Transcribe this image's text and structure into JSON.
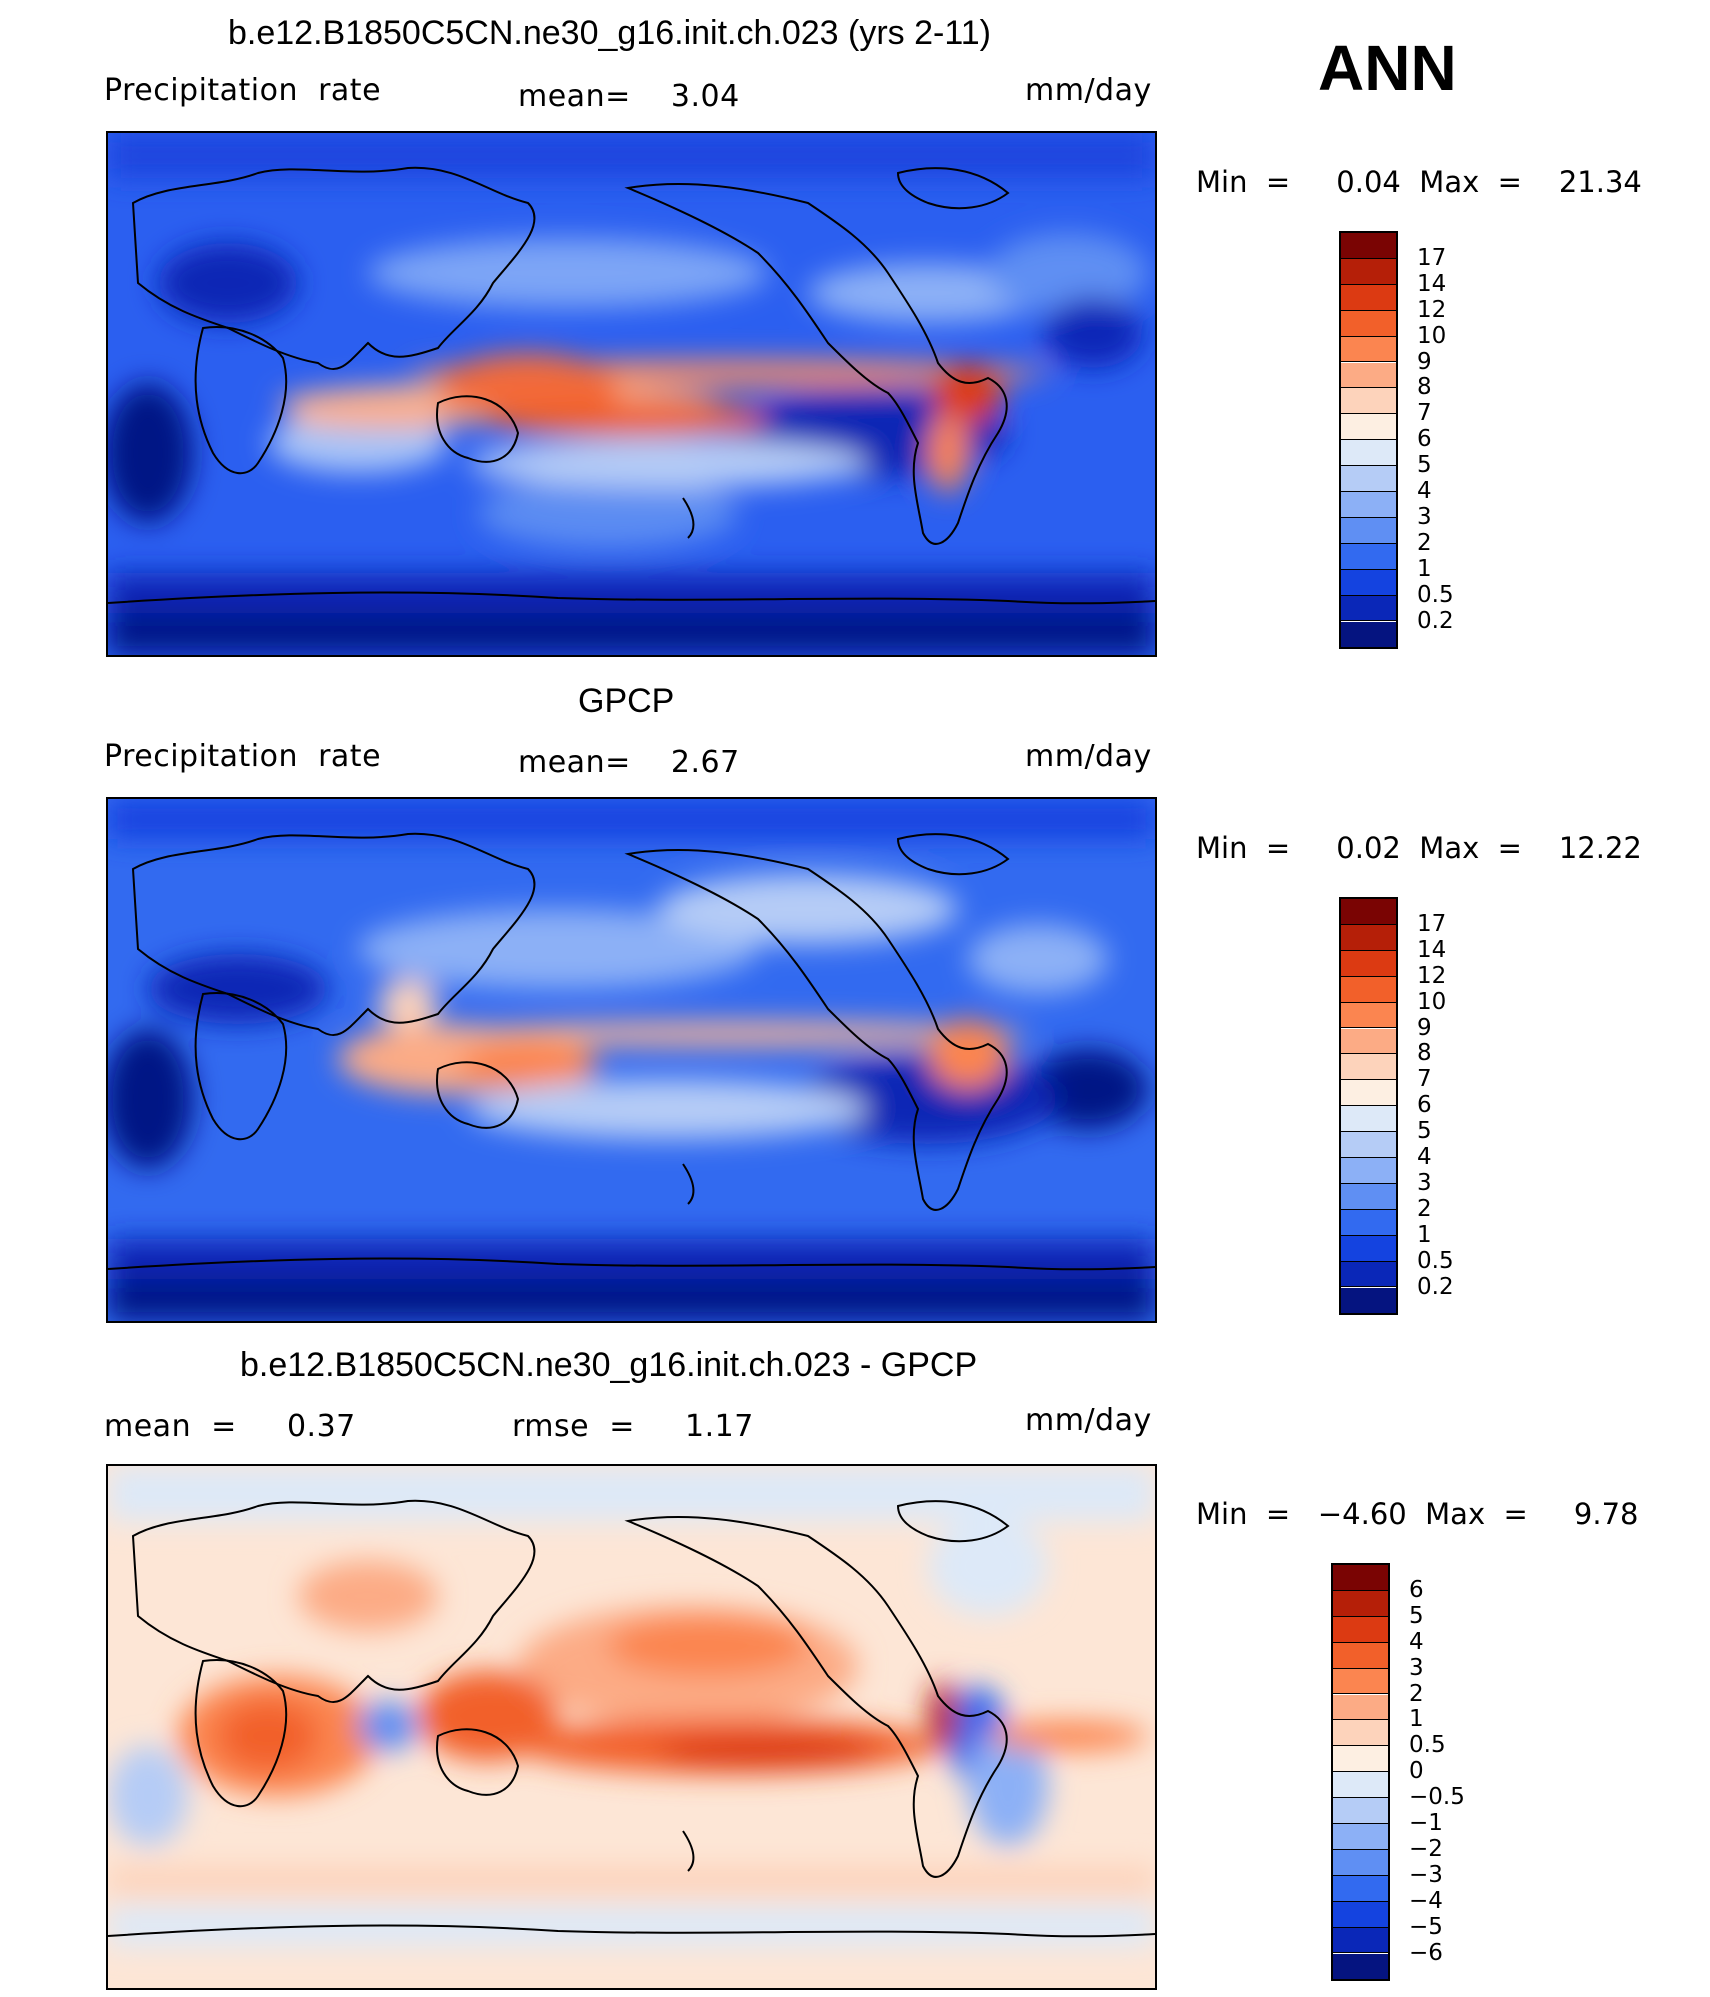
{
  "season": "ANN",
  "panels": [
    {
      "title": "b.e12.B1850C5CN.ne30_g16.init.ch.023 (yrs 2-11)",
      "left_label": "Precipitation  rate",
      "center_label": "mean=    3.04",
      "units": "mm/day",
      "minmax": "Min  =     0.04  Max  =    21.34",
      "field": "model"
    },
    {
      "title": "GPCP",
      "left_label": "Precipitation  rate",
      "center_label": "mean=    2.67",
      "units": "mm/day",
      "minmax": "Min  =     0.02  Max  =    12.22",
      "field": "obs"
    },
    {
      "title": "b.e12.B1850C5CN.ne30_g16.init.ch.023 - GPCP",
      "left_label": "mean  =     0.37",
      "center_label": "rmse  =     1.17",
      "units": "mm/day",
      "minmax": "Min  =   −4.60  Max  =     9.78",
      "field": "diff"
    }
  ],
  "colorbars": {
    "precip": {
      "labels": [
        "17",
        "14",
        "12",
        "10",
        "9",
        "8",
        "7",
        "6",
        "5",
        "4",
        "3",
        "2",
        "1",
        "0.5",
        "0.2"
      ],
      "colors": [
        "#7a0403",
        "#b51f08",
        "#dc3a12",
        "#f2602a",
        "#fb8550",
        "#fcab85",
        "#fdd3bb",
        "#fdefe2",
        "#dde9f8",
        "#b5ccf6",
        "#8cb0f6",
        "#5f8ff3",
        "#326af0",
        "#1443e0",
        "#0a27b8",
        "#051480"
      ]
    },
    "diff": {
      "labels": [
        "6",
        "5",
        "4",
        "3",
        "2",
        "1",
        "0.5",
        "0",
        "−0.5",
        "−1",
        "−2",
        "−3",
        "−4",
        "−5",
        "−6"
      ],
      "colors": [
        "#7a0403",
        "#b51f08",
        "#dc3a12",
        "#f2602a",
        "#fb8550",
        "#fcab85",
        "#fdd3bb",
        "#fdefe2",
        "#dde9f8",
        "#b5ccf6",
        "#8cb0f6",
        "#5f8ff3",
        "#326af0",
        "#1443e0",
        "#0a27b8",
        "#051480"
      ]
    }
  }
}
